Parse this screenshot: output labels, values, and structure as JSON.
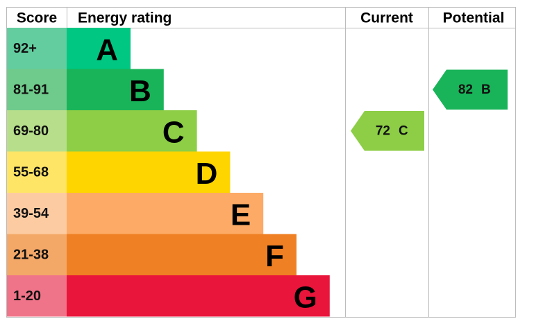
{
  "header": {
    "score": "Score",
    "energy_rating": "Energy rating",
    "current": "Current",
    "potential": "Potential"
  },
  "bands": [
    {
      "score": "92+",
      "letter": "A",
      "color": "#00c781",
      "score_color": "#63cda0"
    },
    {
      "score": "81-91",
      "letter": "B",
      "color": "#19b459",
      "score_color": "#6fcb8b"
    },
    {
      "score": "69-80",
      "letter": "C",
      "color": "#8dce46",
      "score_color": "#b7df8b"
    },
    {
      "score": "55-68",
      "letter": "D",
      "color": "#ffd500",
      "score_color": "#ffe566"
    },
    {
      "score": "39-54",
      "letter": "E",
      "color": "#fcaa65",
      "score_color": "#fdcba2"
    },
    {
      "score": "21-38",
      "letter": "F",
      "color": "#ef8023",
      "score_color": "#f4a868"
    },
    {
      "score": "1-20",
      "letter": "G",
      "color": "#e9153b",
      "score_color": "#f07489"
    }
  ],
  "current": {
    "value": 72,
    "letter": "C"
  },
  "potential": {
    "value": 82,
    "letter": "B"
  }
}
